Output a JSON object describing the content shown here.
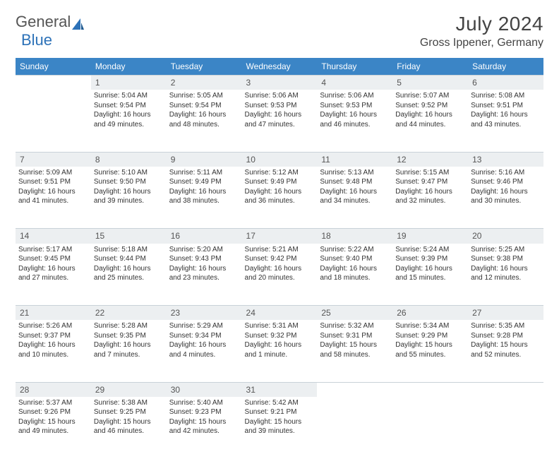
{
  "logo": {
    "text1": "General",
    "text2": "Blue"
  },
  "title": "July 2024",
  "location": "Gross Ippener, Germany",
  "colors": {
    "header_bg": "#3b85c6",
    "header_text": "#ffffff",
    "daynum_bg": "#eceff1",
    "row_sep": "#3b85c6",
    "logo_gray": "#555555",
    "logo_blue": "#2d72b8"
  },
  "weekdays": [
    "Sunday",
    "Monday",
    "Tuesday",
    "Wednesday",
    "Thursday",
    "Friday",
    "Saturday"
  ],
  "weeks": [
    {
      "nums": [
        "",
        "1",
        "2",
        "3",
        "4",
        "5",
        "6"
      ],
      "cells": [
        {
          "l1": "",
          "l2": "",
          "l3": "",
          "l4": ""
        },
        {
          "l1": "Sunrise: 5:04 AM",
          "l2": "Sunset: 9:54 PM",
          "l3": "Daylight: 16 hours",
          "l4": "and 49 minutes."
        },
        {
          "l1": "Sunrise: 5:05 AM",
          "l2": "Sunset: 9:54 PM",
          "l3": "Daylight: 16 hours",
          "l4": "and 48 minutes."
        },
        {
          "l1": "Sunrise: 5:06 AM",
          "l2": "Sunset: 9:53 PM",
          "l3": "Daylight: 16 hours",
          "l4": "and 47 minutes."
        },
        {
          "l1": "Sunrise: 5:06 AM",
          "l2": "Sunset: 9:53 PM",
          "l3": "Daylight: 16 hours",
          "l4": "and 46 minutes."
        },
        {
          "l1": "Sunrise: 5:07 AM",
          "l2": "Sunset: 9:52 PM",
          "l3": "Daylight: 16 hours",
          "l4": "and 44 minutes."
        },
        {
          "l1": "Sunrise: 5:08 AM",
          "l2": "Sunset: 9:51 PM",
          "l3": "Daylight: 16 hours",
          "l4": "and 43 minutes."
        }
      ]
    },
    {
      "nums": [
        "7",
        "8",
        "9",
        "10",
        "11",
        "12",
        "13"
      ],
      "cells": [
        {
          "l1": "Sunrise: 5:09 AM",
          "l2": "Sunset: 9:51 PM",
          "l3": "Daylight: 16 hours",
          "l4": "and 41 minutes."
        },
        {
          "l1": "Sunrise: 5:10 AM",
          "l2": "Sunset: 9:50 PM",
          "l3": "Daylight: 16 hours",
          "l4": "and 39 minutes."
        },
        {
          "l1": "Sunrise: 5:11 AM",
          "l2": "Sunset: 9:49 PM",
          "l3": "Daylight: 16 hours",
          "l4": "and 38 minutes."
        },
        {
          "l1": "Sunrise: 5:12 AM",
          "l2": "Sunset: 9:49 PM",
          "l3": "Daylight: 16 hours",
          "l4": "and 36 minutes."
        },
        {
          "l1": "Sunrise: 5:13 AM",
          "l2": "Sunset: 9:48 PM",
          "l3": "Daylight: 16 hours",
          "l4": "and 34 minutes."
        },
        {
          "l1": "Sunrise: 5:15 AM",
          "l2": "Sunset: 9:47 PM",
          "l3": "Daylight: 16 hours",
          "l4": "and 32 minutes."
        },
        {
          "l1": "Sunrise: 5:16 AM",
          "l2": "Sunset: 9:46 PM",
          "l3": "Daylight: 16 hours",
          "l4": "and 30 minutes."
        }
      ]
    },
    {
      "nums": [
        "14",
        "15",
        "16",
        "17",
        "18",
        "19",
        "20"
      ],
      "cells": [
        {
          "l1": "Sunrise: 5:17 AM",
          "l2": "Sunset: 9:45 PM",
          "l3": "Daylight: 16 hours",
          "l4": "and 27 minutes."
        },
        {
          "l1": "Sunrise: 5:18 AM",
          "l2": "Sunset: 9:44 PM",
          "l3": "Daylight: 16 hours",
          "l4": "and 25 minutes."
        },
        {
          "l1": "Sunrise: 5:20 AM",
          "l2": "Sunset: 9:43 PM",
          "l3": "Daylight: 16 hours",
          "l4": "and 23 minutes."
        },
        {
          "l1": "Sunrise: 5:21 AM",
          "l2": "Sunset: 9:42 PM",
          "l3": "Daylight: 16 hours",
          "l4": "and 20 minutes."
        },
        {
          "l1": "Sunrise: 5:22 AM",
          "l2": "Sunset: 9:40 PM",
          "l3": "Daylight: 16 hours",
          "l4": "and 18 minutes."
        },
        {
          "l1": "Sunrise: 5:24 AM",
          "l2": "Sunset: 9:39 PM",
          "l3": "Daylight: 16 hours",
          "l4": "and 15 minutes."
        },
        {
          "l1": "Sunrise: 5:25 AM",
          "l2": "Sunset: 9:38 PM",
          "l3": "Daylight: 16 hours",
          "l4": "and 12 minutes."
        }
      ]
    },
    {
      "nums": [
        "21",
        "22",
        "23",
        "24",
        "25",
        "26",
        "27"
      ],
      "cells": [
        {
          "l1": "Sunrise: 5:26 AM",
          "l2": "Sunset: 9:37 PM",
          "l3": "Daylight: 16 hours",
          "l4": "and 10 minutes."
        },
        {
          "l1": "Sunrise: 5:28 AM",
          "l2": "Sunset: 9:35 PM",
          "l3": "Daylight: 16 hours",
          "l4": "and 7 minutes."
        },
        {
          "l1": "Sunrise: 5:29 AM",
          "l2": "Sunset: 9:34 PM",
          "l3": "Daylight: 16 hours",
          "l4": "and 4 minutes."
        },
        {
          "l1": "Sunrise: 5:31 AM",
          "l2": "Sunset: 9:32 PM",
          "l3": "Daylight: 16 hours",
          "l4": "and 1 minute."
        },
        {
          "l1": "Sunrise: 5:32 AM",
          "l2": "Sunset: 9:31 PM",
          "l3": "Daylight: 15 hours",
          "l4": "and 58 minutes."
        },
        {
          "l1": "Sunrise: 5:34 AM",
          "l2": "Sunset: 9:29 PM",
          "l3": "Daylight: 15 hours",
          "l4": "and 55 minutes."
        },
        {
          "l1": "Sunrise: 5:35 AM",
          "l2": "Sunset: 9:28 PM",
          "l3": "Daylight: 15 hours",
          "l4": "and 52 minutes."
        }
      ]
    },
    {
      "nums": [
        "28",
        "29",
        "30",
        "31",
        "",
        "",
        ""
      ],
      "cells": [
        {
          "l1": "Sunrise: 5:37 AM",
          "l2": "Sunset: 9:26 PM",
          "l3": "Daylight: 15 hours",
          "l4": "and 49 minutes."
        },
        {
          "l1": "Sunrise: 5:38 AM",
          "l2": "Sunset: 9:25 PM",
          "l3": "Daylight: 15 hours",
          "l4": "and 46 minutes."
        },
        {
          "l1": "Sunrise: 5:40 AM",
          "l2": "Sunset: 9:23 PM",
          "l3": "Daylight: 15 hours",
          "l4": "and 42 minutes."
        },
        {
          "l1": "Sunrise: 5:42 AM",
          "l2": "Sunset: 9:21 PM",
          "l3": "Daylight: 15 hours",
          "l4": "and 39 minutes."
        },
        {
          "l1": "",
          "l2": "",
          "l3": "",
          "l4": ""
        },
        {
          "l1": "",
          "l2": "",
          "l3": "",
          "l4": ""
        },
        {
          "l1": "",
          "l2": "",
          "l3": "",
          "l4": ""
        }
      ]
    }
  ]
}
